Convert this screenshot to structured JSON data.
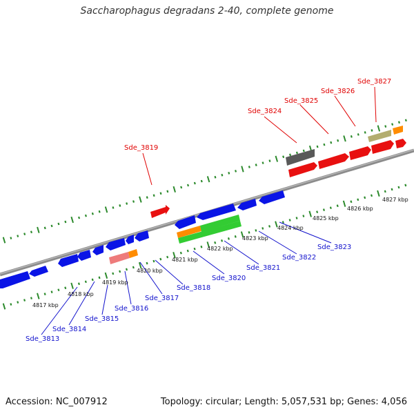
{
  "title": "Saccharophagus degradans 2-40, complete genome",
  "footer": {
    "accession": "Accession: NC_007912",
    "topology": "Topology: circular; Length: 5,057,531 bp; Genes: 4,056"
  },
  "colors": {
    "backbone": "#8c8c8c",
    "tick": "#2c8a2c",
    "blue": "#0a14e6",
    "red": "#e81010",
    "green": "#33cc33",
    "orange": "#ff8c00",
    "pink": "#ee7b7b",
    "gray": "#595959",
    "olive": "#b3ad6f",
    "label_forward": "#e00000",
    "label_reverse": "#1010cc",
    "kbp_text": "#111111"
  },
  "kbp_labels": [
    "4817 kbp",
    "4818 kbp",
    "4819 kbp",
    "4820 kbp",
    "4821 kbp",
    "4822 kbp",
    "4823 kbp",
    "4824 kbp",
    "4825 kbp",
    "4826 kbp",
    "4827 kbp"
  ],
  "gene_labels_forward": [
    "Sde_3819",
    "Sde_3824",
    "Sde_3825",
    "Sde_3826",
    "Sde_3827"
  ],
  "gene_labels_reverse": [
    "Sde_3813",
    "Sde_3814",
    "Sde_3815",
    "Sde_3816",
    "Sde_3817",
    "Sde_3818",
    "Sde_3820",
    "Sde_3821",
    "Sde_3822",
    "Sde_3823"
  ]
}
